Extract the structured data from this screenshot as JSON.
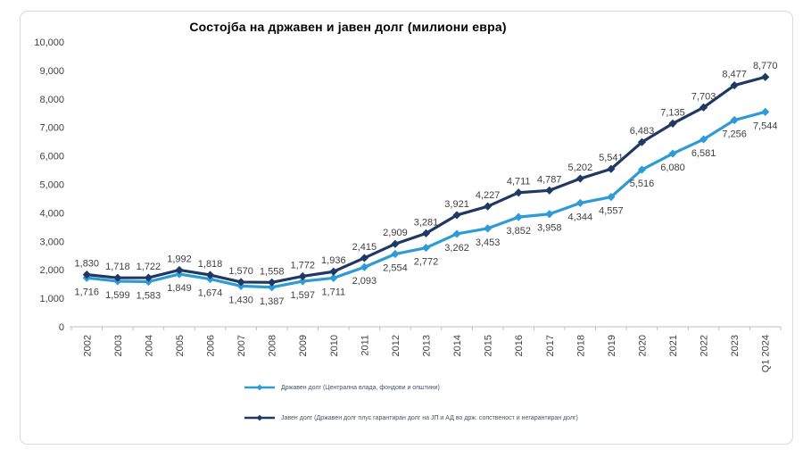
{
  "chart_data": {
    "type": "line",
    "title": "Состојба на државен и јавен долг (милиони евра)",
    "categories": [
      "2002",
      "2003",
      "2004",
      "2005",
      "2006",
      "2007",
      "2008",
      "2009",
      "2010",
      "2011",
      "2012",
      "2013",
      "2014",
      "2015",
      "2016",
      "2017",
      "2018",
      "2019",
      "2020",
      "2021",
      "2022",
      "2023",
      "Q1 2024"
    ],
    "series": [
      {
        "name": "Државен долг (Централна влада, фондови и општини)",
        "color": "#2E9BD5",
        "marker": "diamond",
        "label_position": "below",
        "values": [
          1716,
          1599,
          1583,
          1849,
          1674,
          1430,
          1387,
          1597,
          1711,
          2093,
          2554,
          2772,
          3262,
          3453,
          3852,
          3958,
          4344,
          4557,
          5516,
          6080,
          6581,
          7256,
          7544
        ]
      },
      {
        "name": "Јавен долг (Државен долг плус гарантиран долг на ЈП и АД во држ. сопственост и негарантиран долг)",
        "color": "#1F3864",
        "marker": "diamond",
        "label_position": "above",
        "values": [
          1830,
          1718,
          1722,
          1992,
          1818,
          1570,
          1558,
          1772,
          1936,
          2415,
          2909,
          3281,
          3921,
          4227,
          4711,
          4787,
          5202,
          5541,
          6483,
          7135,
          7703,
          8477,
          8770
        ]
      }
    ],
    "ylim": [
      0,
      10000
    ],
    "ytick_step": 1000,
    "ytick_labels": [
      "0",
      "1,000",
      "2,000",
      "3,000",
      "4,000",
      "5,000",
      "6,000",
      "7,000",
      "8,000",
      "9,000",
      "10,000"
    ],
    "grid": false,
    "data_labels": true,
    "legend_position": "bottom-left",
    "axis_color": "#BFBFBF",
    "tick_label_color": "#404040",
    "data_label_color": "#404040",
    "legend_text_color": "#44546A",
    "title_color": "#000000",
    "frame_border_color": "#d9d9d9"
  }
}
